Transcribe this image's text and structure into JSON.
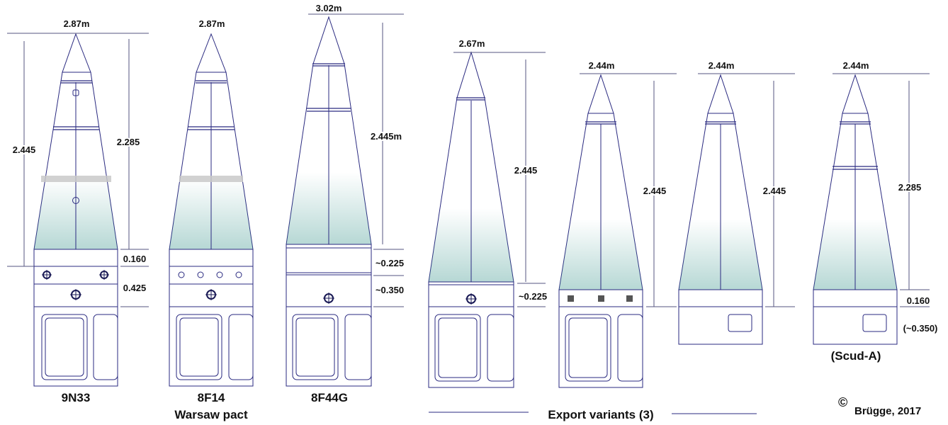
{
  "diagram": {
    "warheads": [
      {
        "name": "9N33",
        "top_label": "2.87m",
        "total_length": "2.445",
        "cone_length": "2.285",
        "ring1_length": "0.160",
        "ring2_length": "0.425"
      },
      {
        "name": "8F14",
        "subtitle": "Warsaw pact",
        "top_label": "2.87m"
      },
      {
        "name": "8F44G",
        "top_label": "3.02m",
        "total_length": "2.445m",
        "ring1_length": "~0.225",
        "ring2_length": "~0.350"
      },
      {
        "top_label": "2.67m",
        "total_length": "2.445",
        "ring1_length": "~0.225"
      },
      {
        "top_label": "2.44m",
        "total_length": "2.445"
      },
      {
        "top_label": "2.44m",
        "total_length": "2.445"
      },
      {
        "name": "(Scud-A)",
        "top_label": "2.44m",
        "cone_length": "2.285",
        "ring1_length": "0.160",
        "ring2_length": "(~0.350)"
      }
    ],
    "export_caption": "Export variants (3)",
    "copyright_symbol": "©",
    "copyright_text": "Brügge, 2017"
  }
}
